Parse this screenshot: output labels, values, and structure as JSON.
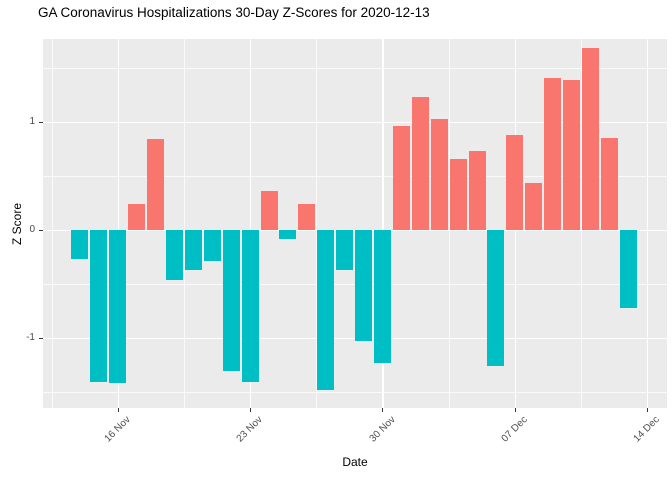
{
  "title": "GA Coronavirus Hospitalizations 30-Day Z-Scores for 2020-12-13",
  "chart_data": {
    "type": "bar",
    "title": "GA Coronavirus Hospitalizations 30-Day Z-Scores for 2020-12-13",
    "xlabel": "Date",
    "ylabel": "Z Score",
    "x": [
      "2020-11-14",
      "2020-11-15",
      "2020-11-16",
      "2020-11-17",
      "2020-11-18",
      "2020-11-19",
      "2020-11-20",
      "2020-11-21",
      "2020-11-22",
      "2020-11-23",
      "2020-11-24",
      "2020-11-25",
      "2020-11-26",
      "2020-11-27",
      "2020-11-28",
      "2020-11-29",
      "2020-11-30",
      "2020-12-01",
      "2020-12-02",
      "2020-12-03",
      "2020-12-04",
      "2020-12-05",
      "2020-12-06",
      "2020-12-07",
      "2020-12-08",
      "2020-12-09",
      "2020-12-10",
      "2020-12-11",
      "2020-12-12",
      "2020-12-13"
    ],
    "values": [
      -0.27,
      -1.41,
      -1.42,
      0.24,
      0.84,
      -0.46,
      -0.37,
      -0.29,
      -1.31,
      -1.41,
      0.36,
      -0.08,
      0.24,
      -1.48,
      -0.37,
      -1.03,
      -1.23,
      0.96,
      1.23,
      1.03,
      0.66,
      0.73,
      -1.26,
      0.88,
      0.44,
      1.41,
      1.39,
      1.69,
      0.85,
      -0.72
    ],
    "x_ticks": [
      {
        "label": "16 Nov",
        "index": 2
      },
      {
        "label": "23 Nov",
        "index": 9
      },
      {
        "label": "30 Nov",
        "index": 16
      },
      {
        "label": "07 Dec",
        "index": 23
      },
      {
        "label": "14 Dec",
        "index": 30
      }
    ],
    "x_minor_indices": [
      -1.5,
      5.5,
      12.5,
      19.5,
      26.5
    ],
    "y_ticks": [
      {
        "label": "1",
        "value": 1
      },
      {
        "label": "0",
        "value": 0
      },
      {
        "label": "-1",
        "value": -1
      }
    ],
    "y_minor": [
      1.5,
      0.5,
      -0.5,
      -1.5
    ],
    "ylim": [
      -1.65,
      1.77
    ],
    "x_index_range": [
      -1.95,
      31.05
    ],
    "bar_width_frac": 0.9,
    "grid": true,
    "legend_position": "none",
    "positive_color": "#F8766D",
    "negative_color": "#00BFC4",
    "panel_bg": "#EBEBEB",
    "grid_color": "#FFFFFF",
    "axis_text_color": "#4D4D4D",
    "tick_mark_color": "#333333"
  }
}
